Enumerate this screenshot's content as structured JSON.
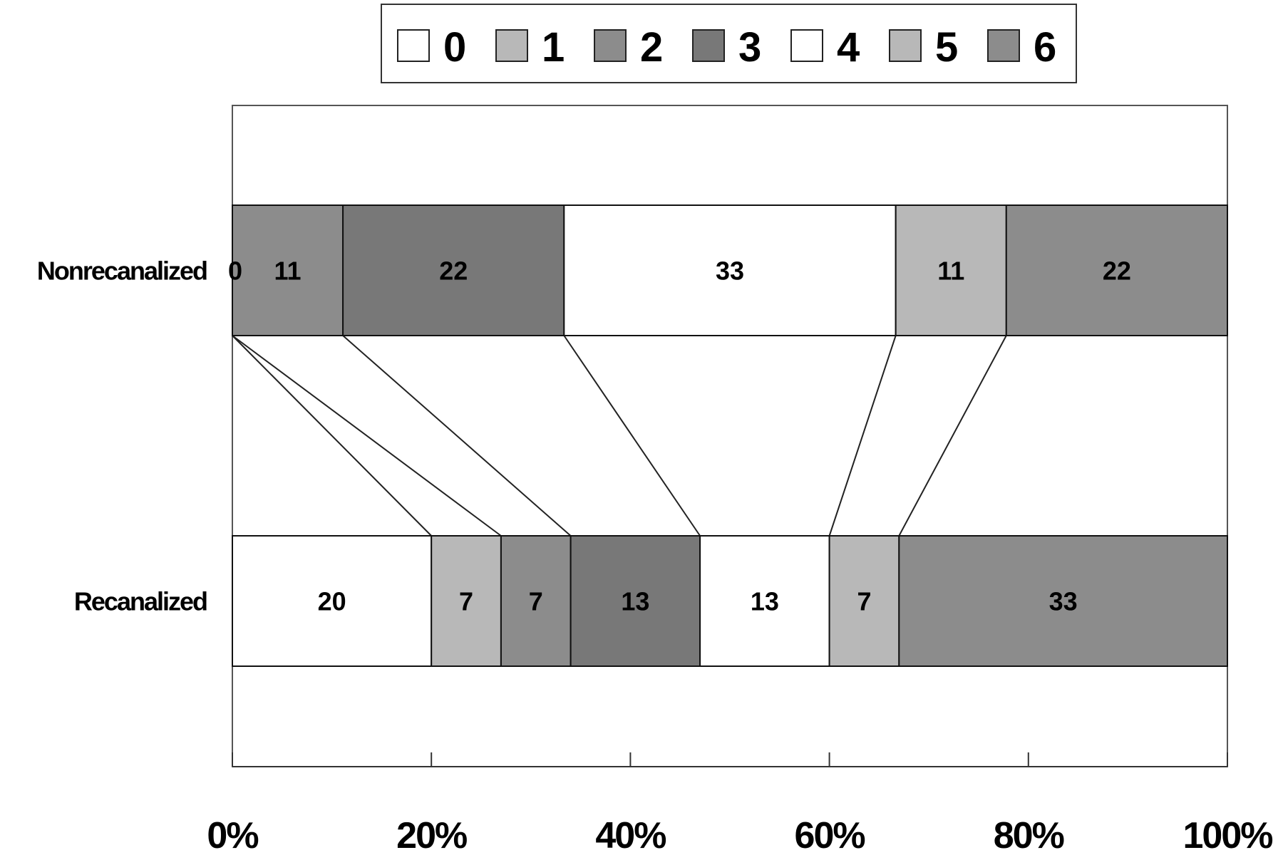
{
  "chart_data": {
    "type": "bar",
    "stacked": true,
    "orientation": "horizontal",
    "normalized_percent": true,
    "categories": [
      "Nonrecanalized",
      "Recanalized"
    ],
    "series": [
      {
        "name": "0",
        "values": [
          0,
          20
        ],
        "color": "#ffffff"
      },
      {
        "name": "1",
        "values": [
          0,
          7
        ],
        "color": "#b8b8b8"
      },
      {
        "name": "2",
        "values": [
          11,
          7
        ],
        "color": "#8c8c8c"
      },
      {
        "name": "3",
        "values": [
          22,
          13
        ],
        "color": "#787878"
      },
      {
        "name": "4",
        "values": [
          33,
          13
        ],
        "color": "#ffffff"
      },
      {
        "name": "5",
        "values": [
          11,
          7
        ],
        "color": "#b8b8b8"
      },
      {
        "name": "6",
        "values": [
          22,
          33
        ],
        "color": "#8c8c8c"
      }
    ],
    "data_labels": {
      "Nonrecanalized": [
        "0",
        "11",
        "22",
        "33",
        "11",
        "22"
      ],
      "Recanalized": [
        "20",
        "7",
        "7",
        "13",
        "13",
        "7",
        "33"
      ]
    },
    "x_ticks": [
      "0%",
      "20%",
      "40%",
      "60%",
      "80%",
      "100%"
    ],
    "xlim": [
      0,
      100
    ],
    "series_lines": true,
    "legend_position": "top",
    "grid": false,
    "title": "",
    "xlabel": "",
    "ylabel": ""
  }
}
